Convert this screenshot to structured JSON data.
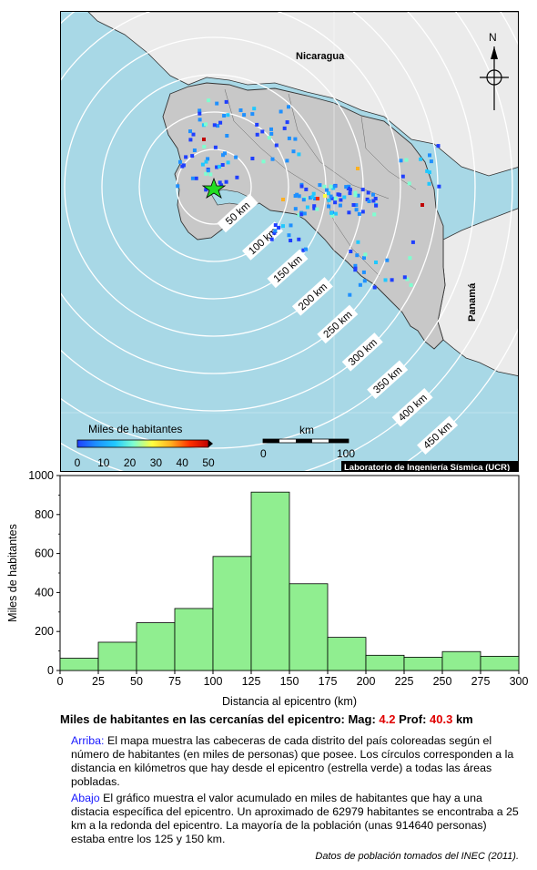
{
  "map": {
    "country_labels": {
      "nicaragua": "Nicaragua",
      "panama": "Panamá"
    },
    "north_label": "N",
    "ring_labels": [
      "50 km",
      "100 km",
      "150 km",
      "200 km",
      "250 km",
      "300 km",
      "350 km",
      "400 km",
      "450 km"
    ],
    "legend": {
      "title": "Miles de habitantes",
      "ticks": [
        "0",
        "10",
        "20",
        "30",
        "40",
        "50"
      ],
      "colors": [
        "#1f3fff",
        "#1e90ff",
        "#20c8ff",
        "#7fffd0",
        "#ffff40",
        "#ffb020",
        "#ff3000",
        "#c00000"
      ]
    },
    "scale": {
      "label": "km",
      "ticks": [
        "0",
        "100"
      ]
    },
    "credit": "Laboratorio de Ingeniería Sísmica (UCR)",
    "colors": {
      "water": "#a8d8e6",
      "land_cr": "#c8c8c8",
      "land_other": "#ebebeb",
      "epicenter": "#22dd22"
    }
  },
  "chart_data": {
    "type": "bar",
    "ylabel": "Miles de habitantes",
    "xlabel": "Distancia al epicentro (km)",
    "bins": [
      [
        0,
        25
      ],
      [
        25,
        50
      ],
      [
        50,
        75
      ],
      [
        75,
        100
      ],
      [
        100,
        125
      ],
      [
        125,
        150
      ],
      [
        150,
        175
      ],
      [
        175,
        200
      ],
      [
        200,
        225
      ],
      [
        225,
        250
      ],
      [
        250,
        275
      ],
      [
        275,
        300
      ]
    ],
    "values": [
      63,
      145,
      245,
      318,
      585,
      915,
      445,
      170,
      78,
      68,
      97,
      73
    ],
    "xlim": [
      0,
      300
    ],
    "ylim": [
      0,
      1000
    ],
    "xticks": [
      "0",
      "25",
      "50",
      "75",
      "100",
      "125",
      "150",
      "175",
      "200",
      "225",
      "250",
      "275",
      "300"
    ],
    "yticks": [
      "0",
      "200",
      "400",
      "600",
      "800",
      "1000"
    ],
    "bar_color": "#90ee90"
  },
  "caption": {
    "title_prefix": "Miles de habitantes en las cercanías del epicentro: Mag: ",
    "mag": "4.2",
    "prof_label": " Prof: ",
    "prof": "40.3",
    "prof_unit": " km",
    "arriba_lead": "Arriba:",
    "arriba_text": " El mapa muestra las cabeceras de cada distrito del país coloreadas según el número de habitantes (en miles de personas) que posee.  Los círculos corresponden a la distancia en kilómetros que hay desde el epicentro (estrella verde) a todas las áreas pobladas.",
    "abajo_lead": "Abajo",
    "abajo_text": " El gráfico muestra el valor acumulado en miles de habitantes que hay a una distacia específica del epicentro.  Un aproximado de 62979 habitantes se encontraba a 25 km a la redonda del epicentro.  La mayoría de la población (unas 914640 personas) estaba entre los 125 y 150 km.",
    "source": "Datos de población tomados del INEC (2011)."
  }
}
